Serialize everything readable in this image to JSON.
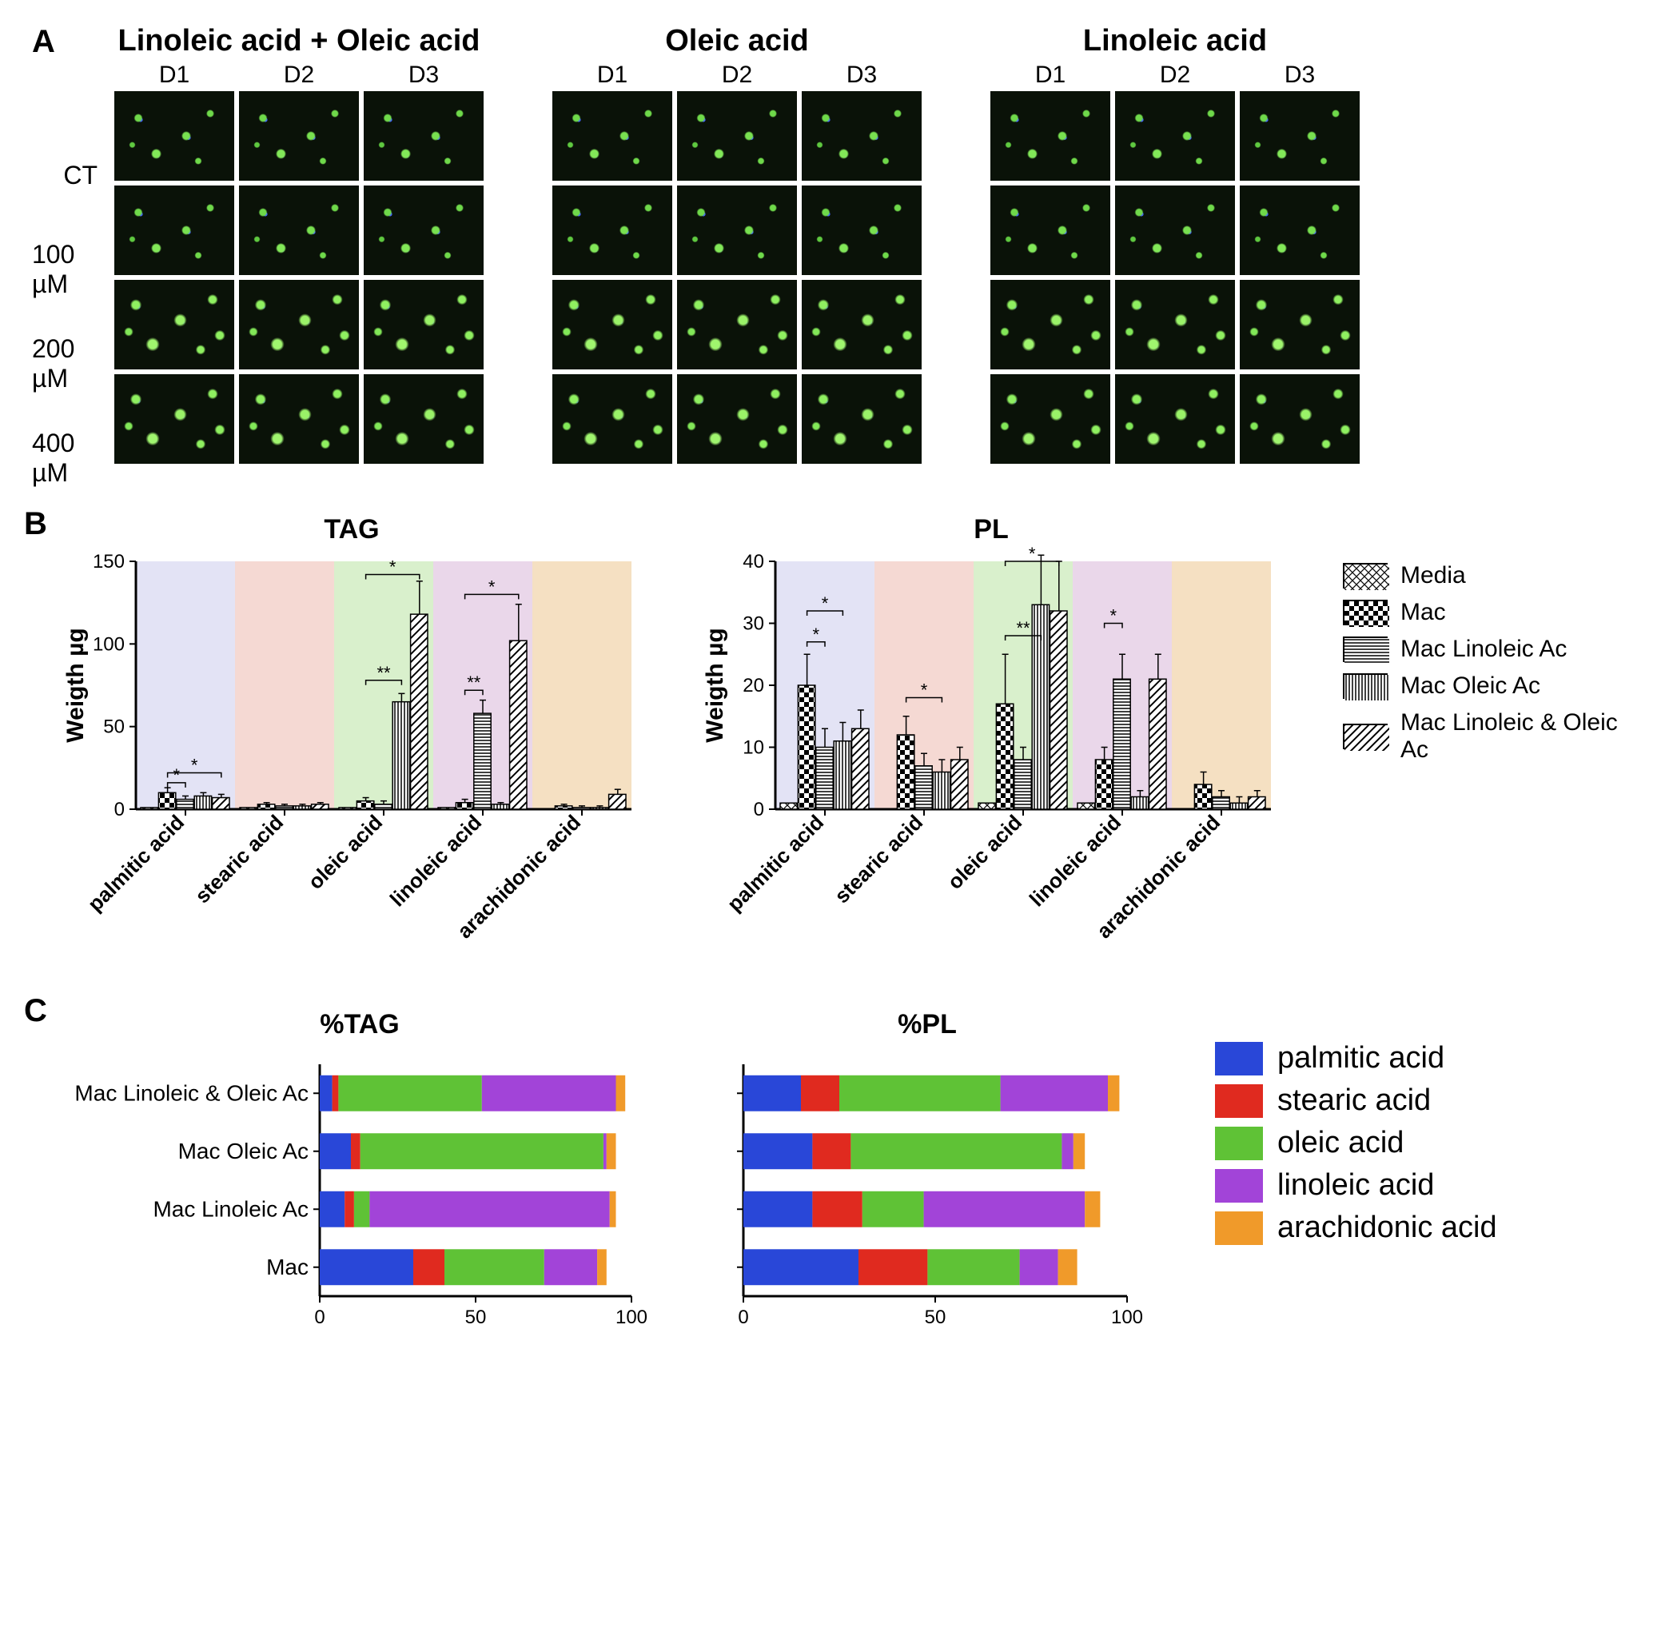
{
  "panelA": {
    "label": "A",
    "treatments": [
      "Linoleic acid + Oleic acid",
      "Oleic acid",
      "Linoleic acid"
    ],
    "columns": [
      "D1",
      "D2",
      "D3"
    ],
    "rows": [
      "CT",
      "100 µM",
      "200 µM",
      "400 µM"
    ]
  },
  "panelB": {
    "label": "B",
    "ylabel": "Weigth µg",
    "charts": [
      {
        "title": "TAG",
        "ylim": [
          0,
          150
        ],
        "ytick": 50,
        "categories": [
          "palmitic acid",
          "stearic acid",
          "oleic acid",
          "linoleic acid",
          "arachidonic acid"
        ],
        "bg_colors": [
          "#e3e3f5",
          "#f5d9d3",
          "#d9f0cc",
          "#ead7ea",
          "#f5e0c2"
        ],
        "series": [
          "Media",
          "Mac",
          "Mac Linoleic Ac",
          "Mac Oleic Ac",
          "Mac Linoleic & Oleic Ac"
        ],
        "values": [
          [
            1,
            10,
            6,
            8,
            7
          ],
          [
            1,
            3,
            2,
            2,
            3
          ],
          [
            1,
            5,
            3,
            65,
            118
          ],
          [
            1,
            4,
            58,
            3,
            102
          ],
          [
            0,
            2,
            1,
            1,
            9
          ]
        ],
        "errors": [
          [
            0,
            3,
            2,
            2,
            2
          ],
          [
            0,
            1,
            1,
            1,
            1
          ],
          [
            0,
            2,
            2,
            5,
            20
          ],
          [
            0,
            2,
            8,
            1,
            22
          ],
          [
            0,
            1,
            1,
            1,
            3
          ]
        ],
        "sig": [
          {
            "cat": 0,
            "from": 1,
            "to": 2,
            "label": "*",
            "y": 16
          },
          {
            "cat": 0,
            "from": 1,
            "to": 4,
            "label": "*",
            "y": 22
          },
          {
            "cat": 2,
            "from": 1,
            "to": 3,
            "label": "**",
            "y": 78
          },
          {
            "cat": 2,
            "from": 1,
            "to": 4,
            "label": "*",
            "y": 142
          },
          {
            "cat": 3,
            "from": 1,
            "to": 2,
            "label": "**",
            "y": 72
          },
          {
            "cat": 3,
            "from": 1,
            "to": 4,
            "label": "*",
            "y": 130
          }
        ]
      },
      {
        "title": "PL",
        "ylim": [
          0,
          40
        ],
        "ytick": 10,
        "categories": [
          "palmitic acid",
          "stearic acid",
          "oleic acid",
          "linoleic acid",
          "arachidonic acid"
        ],
        "bg_colors": [
          "#e3e3f5",
          "#f5d9d3",
          "#d9f0cc",
          "#ead7ea",
          "#f5e0c2"
        ],
        "series": [
          "Media",
          "Mac",
          "Mac Linoleic Ac",
          "Mac Oleic Ac",
          "Mac Linoleic & Oleic Ac"
        ],
        "values": [
          [
            1,
            20,
            10,
            11,
            13
          ],
          [
            0,
            12,
            7,
            6,
            8
          ],
          [
            1,
            17,
            8,
            33,
            32
          ],
          [
            1,
            8,
            21,
            2,
            21
          ],
          [
            0,
            4,
            2,
            1,
            2
          ]
        ],
        "errors": [
          [
            0,
            5,
            3,
            3,
            3
          ],
          [
            0,
            3,
            2,
            2,
            2
          ],
          [
            0,
            8,
            2,
            8,
            8
          ],
          [
            0,
            2,
            4,
            1,
            4
          ],
          [
            0,
            2,
            1,
            1,
            1
          ]
        ],
        "sig": [
          {
            "cat": 0,
            "from": 1,
            "to": 2,
            "label": "*",
            "y": 27
          },
          {
            "cat": 0,
            "from": 1,
            "to": 3,
            "label": "*",
            "y": 32
          },
          {
            "cat": 1,
            "from": 1,
            "to": 3,
            "label": "*",
            "y": 18
          },
          {
            "cat": 2,
            "from": 1,
            "to": 3,
            "label": "**",
            "y": 28
          },
          {
            "cat": 2,
            "from": 1,
            "to": 4,
            "label": "*",
            "y": 42
          },
          {
            "cat": 3,
            "from": 1,
            "to": 2,
            "label": "*",
            "y": 30
          }
        ]
      }
    ],
    "legend": [
      {
        "label": "Media",
        "pattern": "crosshatch"
      },
      {
        "label": "Mac",
        "pattern": "checker"
      },
      {
        "label": "Mac Linoleic Ac",
        "pattern": "hstripe"
      },
      {
        "label": "Mac Oleic Ac",
        "pattern": "vstripe"
      },
      {
        "label": "Mac Linoleic & Oleic Ac",
        "pattern": "diag"
      }
    ]
  },
  "panelC": {
    "label": "C",
    "charts": [
      {
        "title": "%TAG",
        "xlim": [
          0,
          100
        ],
        "xtick": 50,
        "rows": [
          "Mac Linoleic & Oleic Ac",
          "Mac Oleic Ac",
          "Mac Linoleic Ac",
          "Mac"
        ],
        "stacks": [
          [
            4,
            2,
            46,
            43,
            3
          ],
          [
            10,
            3,
            78,
            1,
            3
          ],
          [
            8,
            3,
            5,
            77,
            2
          ],
          [
            30,
            10,
            32,
            17,
            3
          ]
        ]
      },
      {
        "title": "%PL",
        "xlim": [
          0,
          100
        ],
        "xtick": 50,
        "rows": [
          "Mac Linoleic & Oleic Ac",
          "Mac Oleic Ac",
          "Mac Linoleic Ac",
          "Mac"
        ],
        "stacks": [
          [
            15,
            10,
            42,
            28,
            3
          ],
          [
            18,
            10,
            55,
            3,
            3
          ],
          [
            18,
            13,
            16,
            42,
            4
          ],
          [
            30,
            18,
            24,
            10,
            5
          ]
        ]
      }
    ],
    "colors": [
      "#2947d8",
      "#e02a1f",
      "#5fc236",
      "#a244d8",
      "#f09a2a"
    ],
    "legend": [
      "palmitic acid",
      "stearic acid",
      "oleic acid",
      "linoleic acid",
      "arachidonic acid"
    ]
  }
}
